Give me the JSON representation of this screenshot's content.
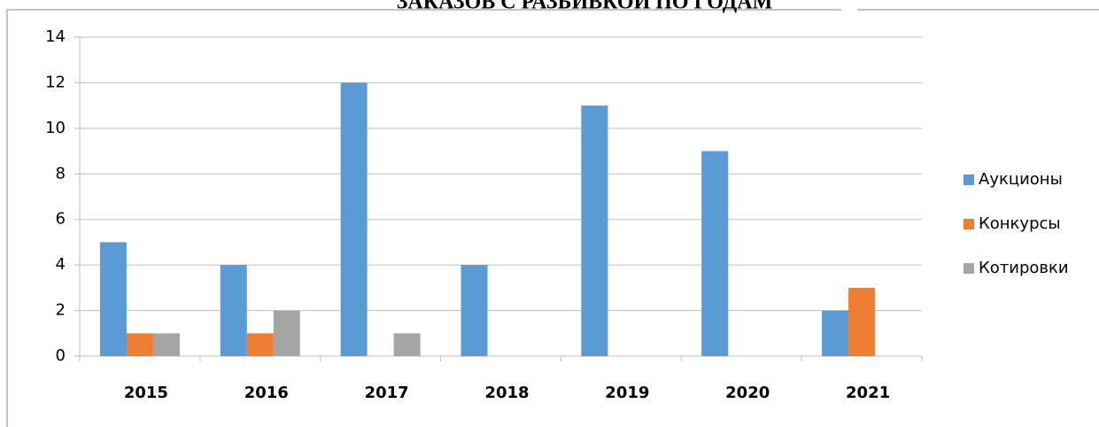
{
  "chart_data": {
    "type": "bar",
    "title": "ЗАКАЗОВ С РАЗБИВКОЙ ПО ГОДАМ",
    "categories": [
      "2015",
      "2016",
      "2017",
      "2018",
      "2019",
      "2020",
      "2021"
    ],
    "series": [
      {
        "name": "Аукционы",
        "color": "#5b9bd5",
        "values": [
          5,
          4,
          12,
          4,
          11,
          9,
          2
        ]
      },
      {
        "name": "Конкурсы",
        "color": "#ed7d31",
        "values": [
          1,
          1,
          0,
          0,
          0,
          0,
          3
        ]
      },
      {
        "name": "Котировки",
        "color": "#a5a5a5",
        "values": [
          1,
          2,
          1,
          0,
          0,
          0,
          0
        ]
      }
    ],
    "ylim": [
      0,
      14
    ],
    "yticks": [
      0,
      2,
      4,
      6,
      8,
      10,
      12,
      14
    ],
    "grid": true,
    "legend": "right"
  }
}
